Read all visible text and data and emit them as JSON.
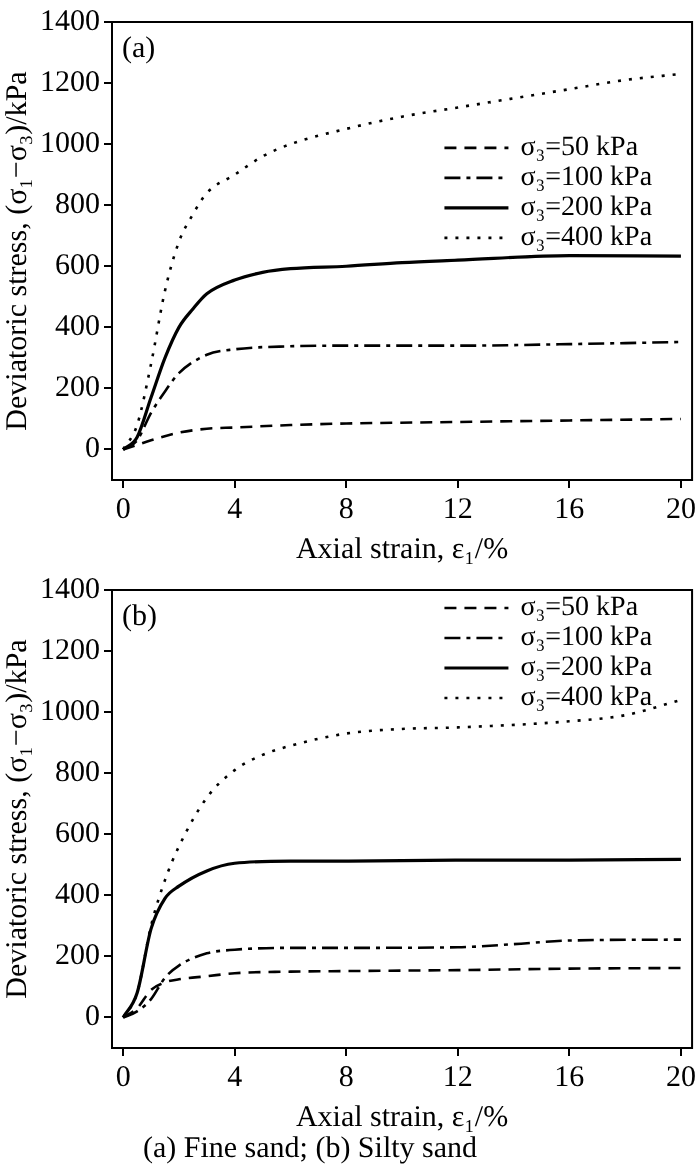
{
  "chart_data": [
    {
      "type": "line",
      "title": "(a)",
      "xlabel": "Axial strain, ε₁/%",
      "ylabel": "Deviatoric stress, (σ₁−σ₃)/kPa",
      "xlim": [
        -0.4,
        20.4
      ],
      "ylim": [
        -100,
        1400
      ],
      "xticks": [
        0,
        4,
        8,
        12,
        16,
        20
      ],
      "yticks": [
        0,
        200,
        400,
        600,
        800,
        1000,
        1200,
        1400
      ],
      "grid": false,
      "legend": "right",
      "marker": "none",
      "series": [
        {
          "name": "σ₃=50 kPa",
          "color": "#000000",
          "line_style": "dashed",
          "x": [
            0,
            0.5,
            1,
            2,
            3,
            4,
            6,
            8,
            12,
            16,
            20
          ],
          "values": [
            0,
            15,
            30,
            55,
            68,
            72,
            80,
            85,
            90,
            95,
            100
          ]
        },
        {
          "name": "σ₃=100 kPa",
          "color": "#000000",
          "line_style": "dashdot",
          "x": [
            0,
            0.5,
            1,
            1.5,
            2,
            3,
            4,
            6,
            8,
            12,
            16,
            20
          ],
          "values": [
            0,
            30,
            120,
            190,
            250,
            310,
            328,
            338,
            340,
            340,
            345,
            352
          ]
        },
        {
          "name": "σ₃=200 kPa",
          "color": "#000000",
          "line_style": "solid",
          "x": [
            0,
            0.5,
            1,
            1.5,
            2,
            2.5,
            3,
            4,
            5,
            6,
            8,
            10,
            12,
            16,
            20
          ],
          "values": [
            0,
            40,
            170,
            300,
            400,
            460,
            510,
            555,
            580,
            592,
            600,
            612,
            620,
            635,
            633
          ]
        },
        {
          "name": "σ₃=400 kPa",
          "color": "#000000",
          "line_style": "dotted",
          "x": [
            0,
            0.5,
            1,
            1.5,
            2,
            2.5,
            3,
            4,
            5,
            6,
            8,
            10,
            12,
            14,
            16,
            18,
            20
          ],
          "values": [
            0,
            80,
            280,
            520,
            680,
            770,
            840,
            900,
            960,
            1000,
            1050,
            1090,
            1120,
            1150,
            1180,
            1210,
            1230
          ]
        }
      ]
    },
    {
      "type": "line",
      "title": "(b)",
      "xlabel": "Axial strain, ε₁/%",
      "ylabel": "Deviatoric stress, (σ₁−σ₃)/kPa",
      "xlim": [
        -0.4,
        20.4
      ],
      "ylim": [
        -100,
        1400
      ],
      "xticks": [
        0,
        4,
        8,
        12,
        16,
        20
      ],
      "yticks": [
        0,
        200,
        400,
        600,
        800,
        1000,
        1200,
        1400
      ],
      "grid": false,
      "legend": "top right",
      "marker": "none",
      "annotations": [
        "(a) Fine sand; (b) Silty sand"
      ],
      "series": [
        {
          "name": "σ₃=50 kPa",
          "color": "#000000",
          "line_style": "dashed",
          "x": [
            0,
            0.5,
            1,
            1.5,
            2,
            3,
            4,
            6,
            8,
            12,
            16,
            20
          ],
          "values": [
            0,
            30,
            90,
            115,
            125,
            135,
            145,
            150,
            152,
            155,
            160,
            162
          ]
        },
        {
          "name": "σ₃=100 kPa",
          "color": "#000000",
          "line_style": "dashdot",
          "x": [
            0,
            0.5,
            1,
            1.5,
            2,
            3,
            4,
            6,
            8,
            12,
            14,
            16,
            20
          ],
          "values": [
            0,
            20,
            60,
            130,
            170,
            210,
            222,
            228,
            228,
            230,
            240,
            252,
            255
          ]
        },
        {
          "name": "σ₃=200 kPa",
          "color": "#000000",
          "line_style": "solid",
          "x": [
            0,
            0.5,
            1,
            1.5,
            2,
            3,
            4,
            6,
            8,
            12,
            16,
            20
          ],
          "values": [
            0,
            80,
            290,
            390,
            430,
            480,
            505,
            512,
            512,
            515,
            515,
            518
          ]
        },
        {
          "name": "σ₃=400 kPa",
          "color": "#000000",
          "line_style": "dotted",
          "x": [
            0,
            0.5,
            1,
            1.5,
            2,
            3,
            4,
            5,
            6,
            8,
            10,
            12,
            16,
            18,
            20
          ],
          "values": [
            0,
            80,
            300,
            450,
            560,
            720,
            810,
            860,
            890,
            930,
            945,
            950,
            970,
            990,
            1040
          ]
        }
      ]
    }
  ]
}
